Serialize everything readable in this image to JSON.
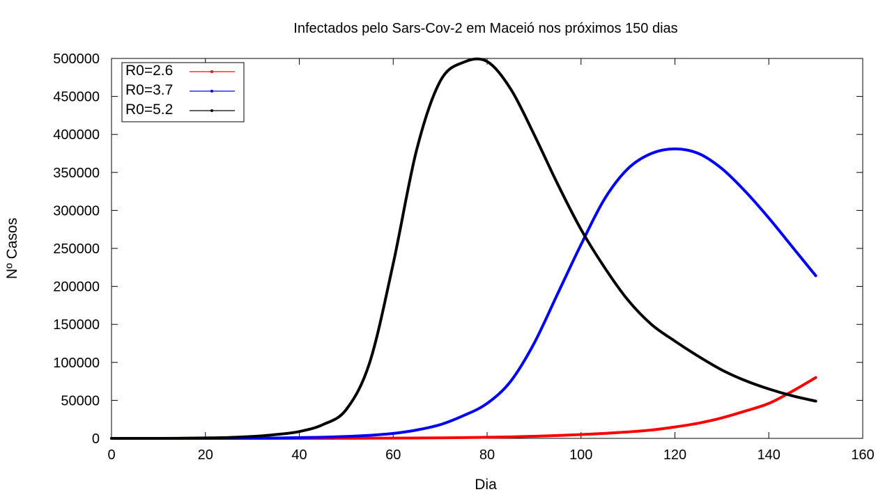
{
  "chart_data": {
    "type": "line",
    "title": "Infectados pelo Sars-Cov-2 em Maceió nos próximos 150 dias",
    "xlabel": "Dia",
    "ylabel": "Nº Casos",
    "xlim": [
      0,
      160
    ],
    "ylim": [
      0,
      500000
    ],
    "x_ticks": [
      0,
      20,
      40,
      60,
      80,
      100,
      120,
      140,
      160
    ],
    "y_ticks": [
      0,
      50000,
      100000,
      150000,
      200000,
      250000,
      300000,
      350000,
      400000,
      450000,
      500000
    ],
    "grid": false,
    "legend_position": "top-left",
    "x": [
      0,
      5,
      10,
      15,
      20,
      25,
      30,
      35,
      40,
      45,
      50,
      55,
      60,
      65,
      70,
      75,
      80,
      85,
      90,
      95,
      100,
      105,
      110,
      115,
      120,
      125,
      130,
      135,
      140,
      145,
      150
    ],
    "series": [
      {
        "name": "R0=2.6",
        "color": "#ff0000",
        "values": [
          0,
          0,
          0,
          0,
          0,
          0,
          0,
          0,
          0,
          0,
          100,
          200,
          300,
          500,
          700,
          1000,
          1500,
          2000,
          2800,
          3800,
          5000,
          6500,
          8500,
          11000,
          15000,
          20000,
          27000,
          36000,
          46000,
          62000,
          80000
        ]
      },
      {
        "name": "R0=3.7",
        "color": "#0000ff",
        "values": [
          0,
          0,
          0,
          0,
          0,
          0,
          200,
          500,
          1000,
          1500,
          2500,
          4000,
          6500,
          11000,
          18000,
          30000,
          46000,
          75000,
          125000,
          190000,
          255000,
          315000,
          355000,
          375000,
          381000,
          375000,
          355000,
          325000,
          290000,
          252000,
          214000
        ]
      },
      {
        "name": "R0=5.2",
        "color": "#000000",
        "values": [
          0,
          0,
          0,
          200,
          600,
          1200,
          2500,
          5000,
          9000,
          18000,
          38000,
          100000,
          230000,
          380000,
          470000,
          495000,
          496000,
          460000,
          400000,
          335000,
          275000,
          225000,
          182000,
          150000,
          128000,
          108000,
          90000,
          76000,
          65000,
          56000,
          49000
        ]
      }
    ]
  }
}
